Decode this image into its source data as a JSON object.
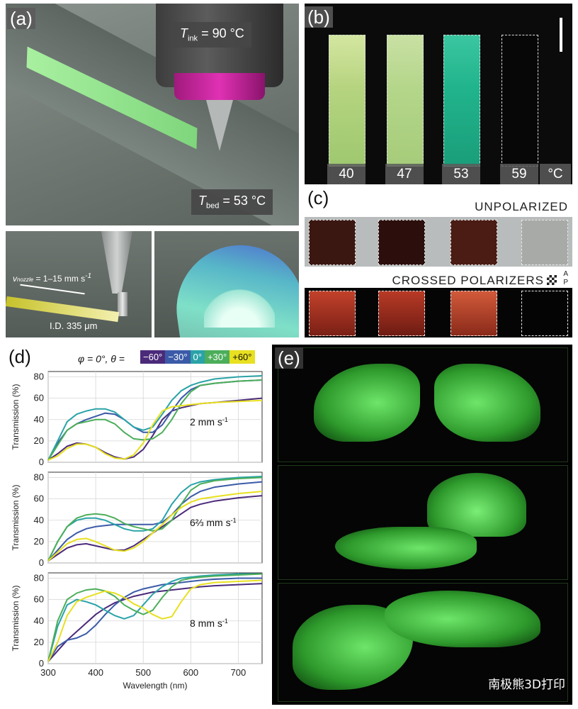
{
  "panels": {
    "a": {
      "label": "(a)",
      "t_ink": "= 90 °C",
      "t_bed": "= 53 °C",
      "v_nozzle": "= 1–15 mm s",
      "id": "I.D. 335 μm"
    },
    "b": {
      "label": "(b)",
      "temps": [
        "40",
        "47",
        "53",
        "59"
      ],
      "unit": "°C"
    },
    "c": {
      "label": "(c)",
      "unpolarized": "UNPOLARIZED",
      "crossed": "CROSSED POLARIZERS",
      "a": "A",
      "p": "P"
    },
    "d": {
      "label": "(d)",
      "legend_prefix": "φ = 0°, θ =",
      "legend_items": [
        "−60°",
        "−30°",
        "0°",
        "+30°",
        "+60°"
      ],
      "speeds": [
        "2 mm s",
        "6⅔ mm s",
        "8 mm s"
      ]
    },
    "e": {
      "label": "(e)",
      "watermark": "南极熊3D打印"
    }
  },
  "colors": {
    "m60": "#4b2a7a",
    "m30": "#3b5ba8",
    "z0": "#2aa3a8",
    "p30": "#4cae5a",
    "p60": "#e8e020",
    "green": "#4ecf4a"
  },
  "chart_data": [
    {
      "type": "line",
      "title": "2 mm s",
      "xlabel": "Wavelength (nm)",
      "ylabel": "Transmission (%)",
      "xlim": [
        300,
        750
      ],
      "ylim": [
        0,
        85
      ],
      "grid": true,
      "x": [
        300,
        320,
        340,
        360,
        380,
        400,
        420,
        440,
        460,
        480,
        500,
        520,
        540,
        560,
        580,
        600,
        620,
        650,
        700,
        750
      ],
      "series": [
        {
          "name": "−60°",
          "values": [
            2,
            8,
            15,
            18,
            17,
            14,
            9,
            5,
            3,
            5,
            12,
            25,
            40,
            48,
            51,
            53,
            55,
            56,
            58,
            60
          ]
        },
        {
          "name": "−30°",
          "values": [
            2,
            18,
            30,
            36,
            40,
            43,
            46,
            45,
            40,
            33,
            28,
            28,
            35,
            48,
            60,
            68,
            72,
            74,
            76,
            77
          ]
        },
        {
          "name": "0°",
          "values": [
            2,
            20,
            38,
            45,
            48,
            50,
            50,
            47,
            40,
            33,
            30,
            33,
            45,
            58,
            67,
            72,
            75,
            78,
            80,
            81
          ]
        },
        {
          "name": "+30°",
          "values": [
            2,
            16,
            30,
            36,
            38,
            40,
            40,
            36,
            28,
            22,
            21,
            22,
            28,
            40,
            55,
            66,
            72,
            74,
            76,
            77
          ]
        },
        {
          "name": "+60°",
          "values": [
            2,
            6,
            13,
            17,
            17,
            14,
            8,
            4,
            3,
            7,
            18,
            35,
            48,
            52,
            53,
            54,
            55,
            56,
            57,
            58
          ]
        }
      ]
    },
    {
      "type": "line",
      "title": "6⅔ mm s",
      "xlabel": "Wavelength (nm)",
      "ylabel": "Transmission (%)",
      "xlim": [
        300,
        750
      ],
      "ylim": [
        0,
        85
      ],
      "grid": true,
      "x": [
        300,
        320,
        340,
        360,
        380,
        400,
        420,
        440,
        460,
        480,
        500,
        520,
        540,
        560,
        580,
        600,
        620,
        650,
        700,
        750
      ],
      "series": [
        {
          "name": "−60°",
          "values": [
            2,
            8,
            14,
            17,
            18,
            16,
            14,
            12,
            12,
            16,
            22,
            28,
            34,
            40,
            46,
            52,
            55,
            58,
            61,
            63
          ]
        },
        {
          "name": "−30°",
          "values": [
            2,
            12,
            22,
            28,
            32,
            34,
            35,
            36,
            36,
            36,
            36,
            36,
            38,
            45,
            55,
            62,
            67,
            71,
            74,
            76
          ]
        },
        {
          "name": "0°",
          "values": [
            2,
            20,
            34,
            40,
            42,
            42,
            40,
            36,
            32,
            30,
            30,
            32,
            40,
            55,
            66,
            73,
            76,
            78,
            80,
            81
          ]
        },
        {
          "name": "+30°",
          "values": [
            2,
            20,
            34,
            42,
            45,
            46,
            45,
            42,
            37,
            34,
            32,
            30,
            32,
            40,
            55,
            68,
            74,
            77,
            79,
            80
          ]
        },
        {
          "name": "+60°",
          "values": [
            2,
            10,
            18,
            22,
            23,
            20,
            16,
            12,
            11,
            14,
            20,
            28,
            36,
            45,
            52,
            57,
            60,
            62,
            65,
            67
          ]
        }
      ]
    },
    {
      "type": "line",
      "title": "8 mm s",
      "xlabel": "Wavelength (nm)",
      "ylabel": "Transmission (%)",
      "xlim": [
        300,
        750
      ],
      "ylim": [
        0,
        85
      ],
      "grid": true,
      "x": [
        300,
        320,
        340,
        360,
        380,
        400,
        420,
        440,
        460,
        480,
        500,
        520,
        540,
        560,
        580,
        600,
        620,
        650,
        700,
        750
      ],
      "series": [
        {
          "name": "−60°",
          "values": [
            2,
            12,
            22,
            30,
            38,
            46,
            52,
            57,
            60,
            63,
            65,
            67,
            68,
            69,
            70,
            71,
            72,
            73,
            74,
            75
          ]
        },
        {
          "name": "−30°",
          "values": [
            2,
            16,
            22,
            24,
            28,
            36,
            46,
            55,
            62,
            67,
            70,
            72,
            74,
            75,
            76,
            77,
            78,
            79,
            80,
            80
          ]
        },
        {
          "name": "0°",
          "values": [
            2,
            35,
            55,
            60,
            58,
            55,
            50,
            45,
            42,
            45,
            55,
            65,
            72,
            77,
            80,
            81,
            82,
            83,
            84,
            84
          ]
        },
        {
          "name": "+30°",
          "values": [
            2,
            40,
            60,
            66,
            69,
            70,
            68,
            63,
            55,
            50,
            46,
            50,
            62,
            72,
            78,
            80,
            81,
            82,
            83,
            84
          ]
        },
        {
          "name": "+60°",
          "values": [
            2,
            20,
            45,
            58,
            62,
            65,
            68,
            66,
            62,
            56,
            52,
            46,
            42,
            44,
            58,
            70,
            74,
            76,
            77,
            78
          ]
        }
      ]
    }
  ],
  "axis_ticks": {
    "x": [
      300,
      400,
      500,
      600,
      700
    ],
    "y": [
      0,
      20,
      40,
      60,
      80
    ]
  }
}
